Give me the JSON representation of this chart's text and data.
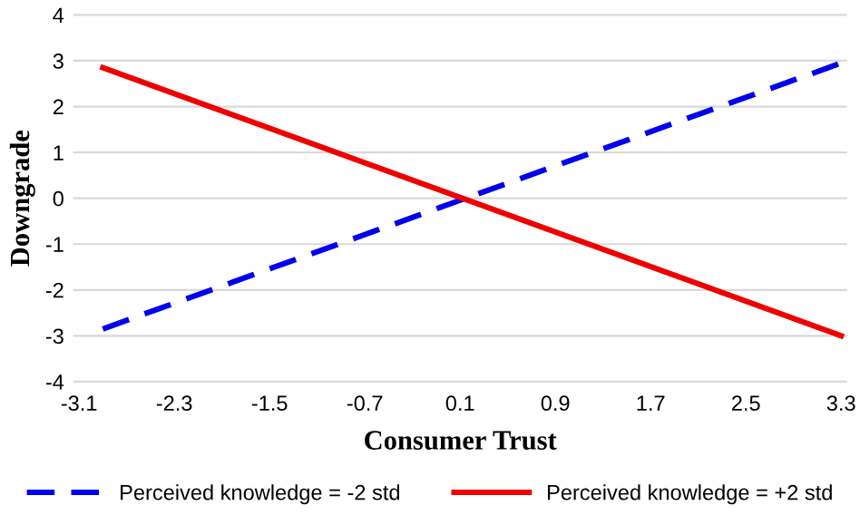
{
  "chart_data": {
    "type": "line",
    "xlabel": "Consumer Trust",
    "ylabel": "Downgrade",
    "x": [
      -2.9,
      3.3
    ],
    "series": [
      {
        "name": "Perceived knowledge = -2 std",
        "color": "#0000ee",
        "values": [
          -2.85,
          2.95
        ],
        "line_style": "dashed"
      },
      {
        "name": "Perceived knowledge = +2 std",
        "color": "#ee0000",
        "values": [
          2.85,
          -3.0
        ],
        "line_style": "solid"
      }
    ],
    "xlim": [
      -3.15,
      3.35
    ],
    "xticks": [
      -3.1,
      -2.3,
      -1.5,
      -0.7,
      0.1,
      0.9,
      1.7,
      2.5,
      3.3
    ],
    "ylim": [
      -4.1,
      4.1
    ],
    "yticks": [
      -4,
      -3,
      -2,
      -1,
      0,
      1,
      2,
      3,
      4
    ],
    "grid": "y",
    "legend": "bottom",
    "marker": "none"
  }
}
